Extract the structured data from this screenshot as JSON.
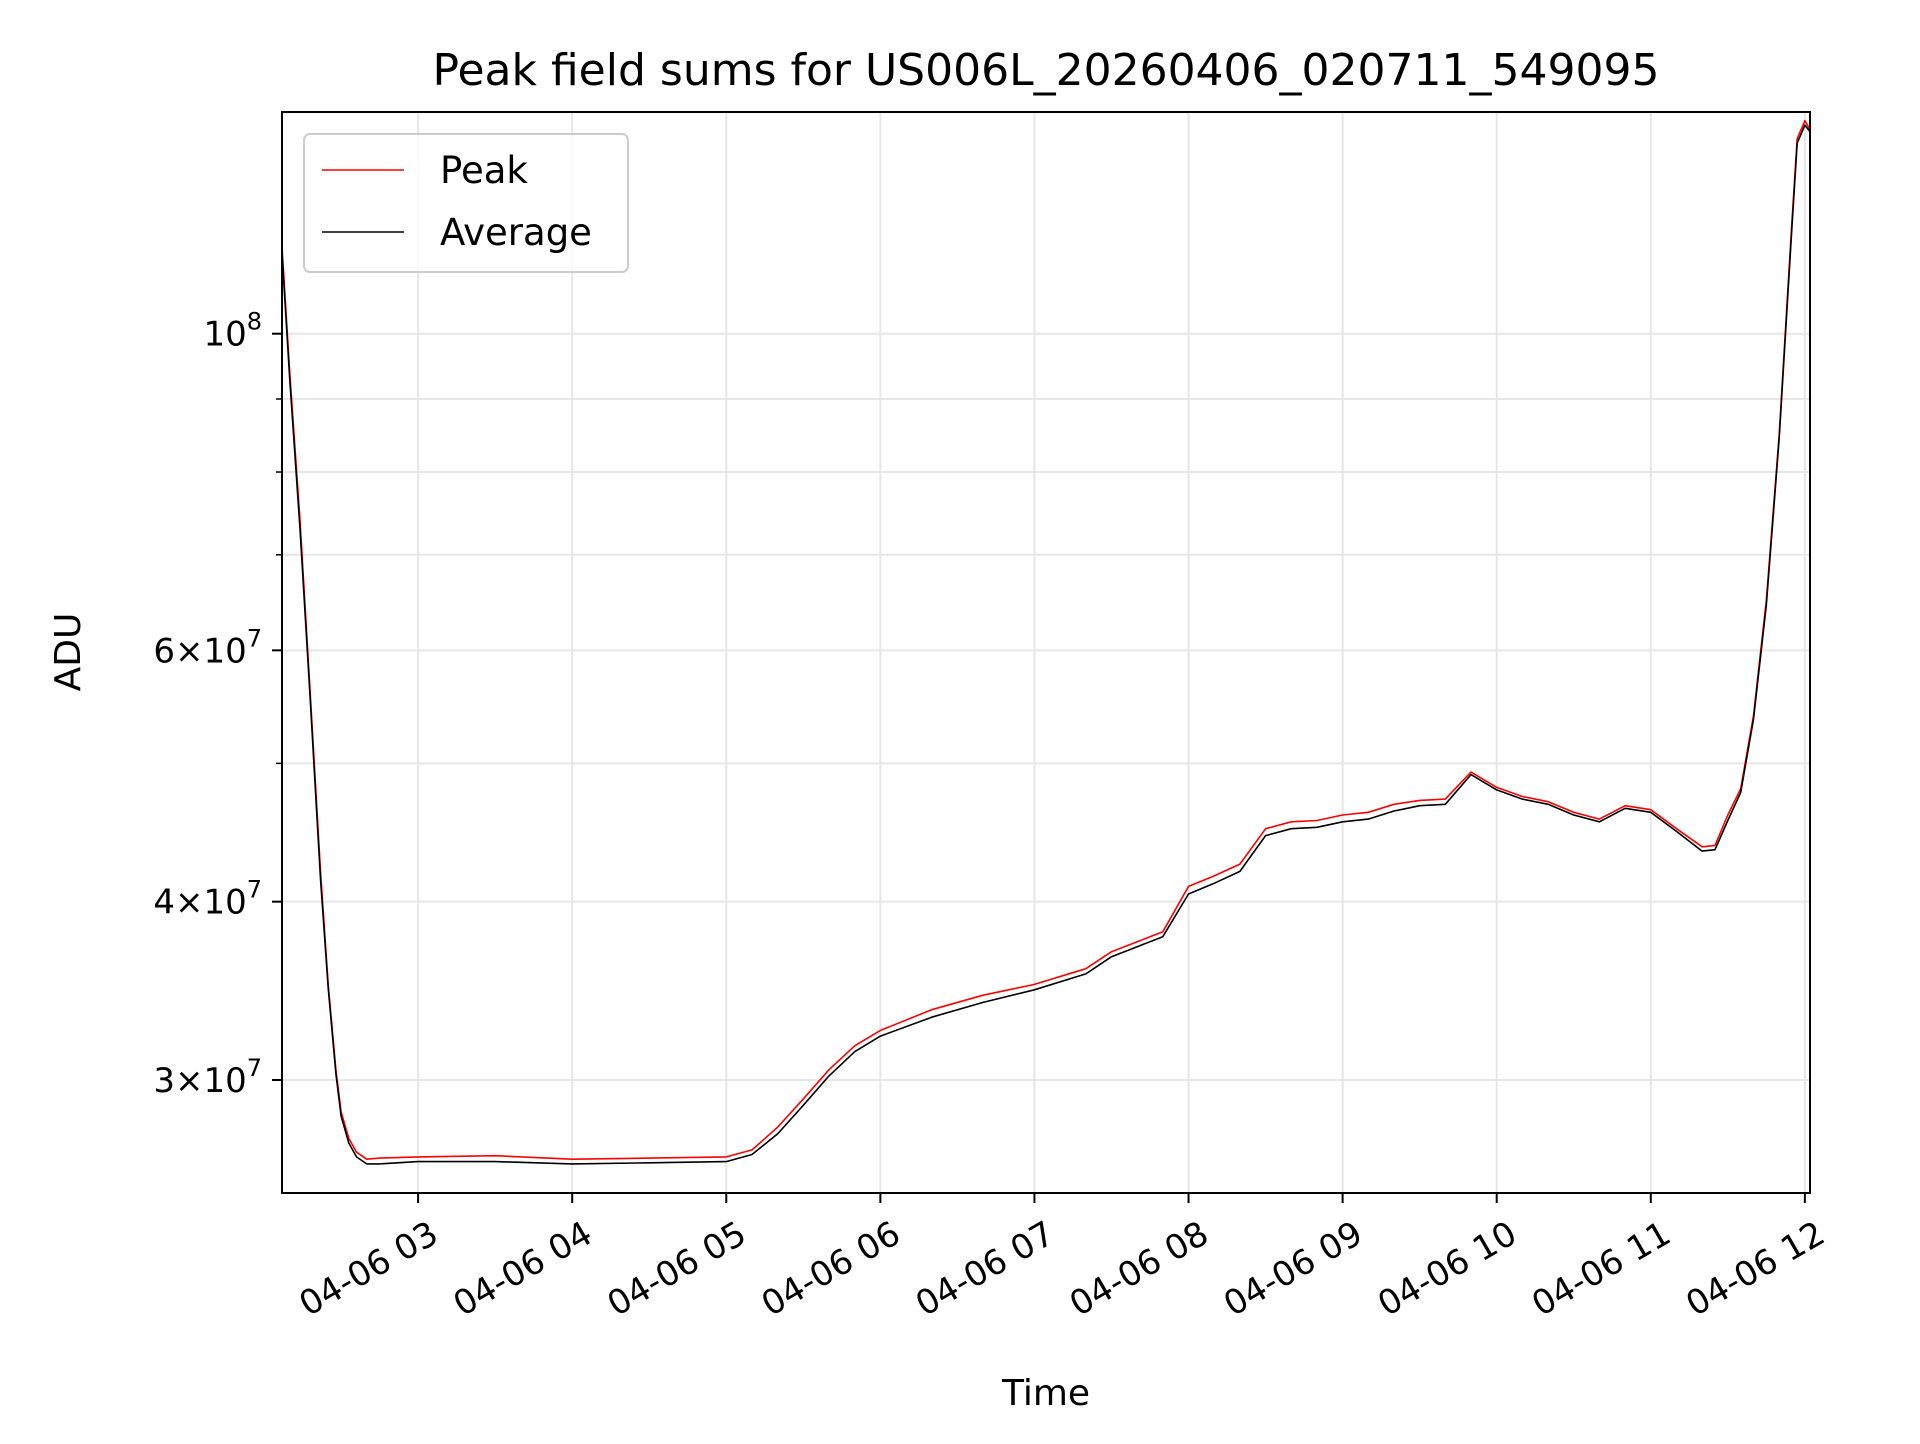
{
  "chart_data": {
    "type": "line",
    "title": "Peak field sums for US006L_20260406_020711_549095",
    "xlabel": "Time",
    "ylabel": "ADU",
    "y_scale": "log",
    "ylim": [
      25000000,
      143000000
    ],
    "xlim": [
      "2026-04-06 02:07",
      "2026-04-06 12:02"
    ],
    "grid": true,
    "legend_position": "top-left",
    "x_ticks": [
      "2026-04-06 03:00",
      "2026-04-06 04:00",
      "2026-04-06 05:00",
      "2026-04-06 06:00",
      "2026-04-06 07:00",
      "2026-04-06 08:00",
      "2026-04-06 09:00",
      "2026-04-06 10:00",
      "2026-04-06 11:00",
      "2026-04-06 12:00"
    ],
    "x_tick_labels": [
      "04-06 03",
      "04-06 04",
      "04-06 05",
      "04-06 06",
      "04-06 07",
      "04-06 08",
      "04-06 09",
      "04-06 10",
      "04-06 11",
      "04-06 12"
    ],
    "y_ticks_major": [
      {
        "value": 30000000,
        "mantissa": "3",
        "exponent": "7"
      },
      {
        "value": 40000000,
        "mantissa": "4",
        "exponent": "7"
      },
      {
        "value": 60000000,
        "mantissa": "6",
        "exponent": "7"
      },
      {
        "value": 100000000,
        "mantissa": "",
        "exponent": "8"
      }
    ],
    "y_ticks_minor": [
      50000000,
      70000000,
      80000000,
      90000000
    ],
    "colors": {
      "peak": "#ff0000",
      "average": "#000000",
      "grid": "#e6e6e6"
    },
    "series": [
      {
        "name": "Peak",
        "color": "#ff0000",
        "x": [
          "2026-04-06 02:07",
          "2026-04-06 02:10",
          "2026-04-06 02:14",
          "2026-04-06 02:18",
          "2026-04-06 02:22",
          "2026-04-06 02:25",
          "2026-04-06 02:28",
          "2026-04-06 02:30",
          "2026-04-06 02:33",
          "2026-04-06 02:36",
          "2026-04-06 02:40",
          "2026-04-06 02:45",
          "2026-04-06 03:00",
          "2026-04-06 03:30",
          "2026-04-06 04:00",
          "2026-04-06 04:30",
          "2026-04-06 05:00",
          "2026-04-06 05:10",
          "2026-04-06 05:20",
          "2026-04-06 05:30",
          "2026-04-06 05:40",
          "2026-04-06 05:50",
          "2026-04-06 06:00",
          "2026-04-06 06:20",
          "2026-04-06 06:40",
          "2026-04-06 07:00",
          "2026-04-06 07:20",
          "2026-04-06 07:30",
          "2026-04-06 07:40",
          "2026-04-06 07:50",
          "2026-04-06 08:00",
          "2026-04-06 08:10",
          "2026-04-06 08:20",
          "2026-04-06 08:30",
          "2026-04-06 08:40",
          "2026-04-06 08:50",
          "2026-04-06 09:00",
          "2026-04-06 09:10",
          "2026-04-06 09:20",
          "2026-04-06 09:30",
          "2026-04-06 09:40",
          "2026-04-06 09:50",
          "2026-04-06 10:00",
          "2026-04-06 10:10",
          "2026-04-06 10:20",
          "2026-04-06 10:30",
          "2026-04-06 10:40",
          "2026-04-06 10:50",
          "2026-04-06 11:00",
          "2026-04-06 11:10",
          "2026-04-06 11:20",
          "2026-04-06 11:25",
          "2026-04-06 11:30",
          "2026-04-06 11:35",
          "2026-04-06 11:40",
          "2026-04-06 11:45",
          "2026-04-06 11:50",
          "2026-04-06 11:55",
          "2026-04-06 11:57",
          "2026-04-06 12:00",
          "2026-04-06 12:02"
        ],
        "values": [
          115000000,
          94000000,
          74000000,
          56000000,
          42000000,
          35000000,
          30500000,
          28500000,
          27300000,
          26700000,
          26400000,
          26450000,
          26500000,
          26550000,
          26400000,
          26450000,
          26500000,
          26800000,
          27800000,
          29100000,
          30500000,
          31700000,
          32500000,
          33600000,
          34400000,
          35000000,
          35900000,
          36900000,
          37500000,
          38100000,
          41000000,
          41700000,
          42500000,
          45000000,
          45500000,
          45600000,
          46000000,
          46200000,
          46800000,
          47100000,
          47200000,
          49300000,
          48100000,
          47400000,
          47000000,
          46200000,
          45700000,
          46700000,
          46400000,
          45000000,
          43700000,
          43800000,
          46000000,
          48000000,
          54000000,
          65000000,
          85000000,
          120000000,
          137000000,
          141000000,
          139000000
        ]
      },
      {
        "name": "Average",
        "color": "#000000",
        "x": [
          "2026-04-06 02:07",
          "2026-04-06 02:10",
          "2026-04-06 02:14",
          "2026-04-06 02:18",
          "2026-04-06 02:22",
          "2026-04-06 02:25",
          "2026-04-06 02:28",
          "2026-04-06 02:30",
          "2026-04-06 02:33",
          "2026-04-06 02:36",
          "2026-04-06 02:40",
          "2026-04-06 02:45",
          "2026-04-06 03:00",
          "2026-04-06 03:30",
          "2026-04-06 04:00",
          "2026-04-06 04:30",
          "2026-04-06 05:00",
          "2026-04-06 05:10",
          "2026-04-06 05:20",
          "2026-04-06 05:30",
          "2026-04-06 05:40",
          "2026-04-06 05:50",
          "2026-04-06 06:00",
          "2026-04-06 06:20",
          "2026-04-06 06:40",
          "2026-04-06 07:00",
          "2026-04-06 07:20",
          "2026-04-06 07:30",
          "2026-04-06 07:40",
          "2026-04-06 07:50",
          "2026-04-06 08:00",
          "2026-04-06 08:10",
          "2026-04-06 08:20",
          "2026-04-06 08:30",
          "2026-04-06 08:40",
          "2026-04-06 08:50",
          "2026-04-06 09:00",
          "2026-04-06 09:10",
          "2026-04-06 09:20",
          "2026-04-06 09:30",
          "2026-04-06 09:40",
          "2026-04-06 09:50",
          "2026-04-06 10:00",
          "2026-04-06 10:10",
          "2026-04-06 10:20",
          "2026-04-06 10:30",
          "2026-04-06 10:40",
          "2026-04-06 10:50",
          "2026-04-06 11:00",
          "2026-04-06 11:10",
          "2026-04-06 11:20",
          "2026-04-06 11:25",
          "2026-04-06 11:30",
          "2026-04-06 11:35",
          "2026-04-06 11:40",
          "2026-04-06 11:45",
          "2026-04-06 11:50",
          "2026-04-06 11:55",
          "2026-04-06 11:57",
          "2026-04-06 12:00",
          "2026-04-06 12:02"
        ],
        "values": [
          114000000,
          93000000,
          73000000,
          55500000,
          41500000,
          34800000,
          30300000,
          28300000,
          27100000,
          26500000,
          26200000,
          26200000,
          26300000,
          26300000,
          26200000,
          26250000,
          26300000,
          26600000,
          27500000,
          28800000,
          30200000,
          31400000,
          32200000,
          33200000,
          34000000,
          34700000,
          35600000,
          36600000,
          37200000,
          37800000,
          40500000,
          41200000,
          42000000,
          44500000,
          45000000,
          45100000,
          45500000,
          45700000,
          46300000,
          46700000,
          46800000,
          49100000,
          47900000,
          47200000,
          46800000,
          46000000,
          45500000,
          46500000,
          46200000,
          44800000,
          43400000,
          43500000,
          45600000,
          47700000,
          53700000,
          64500000,
          84500000,
          119000000,
          136000000,
          140000000,
          138500000
        ]
      }
    ]
  }
}
